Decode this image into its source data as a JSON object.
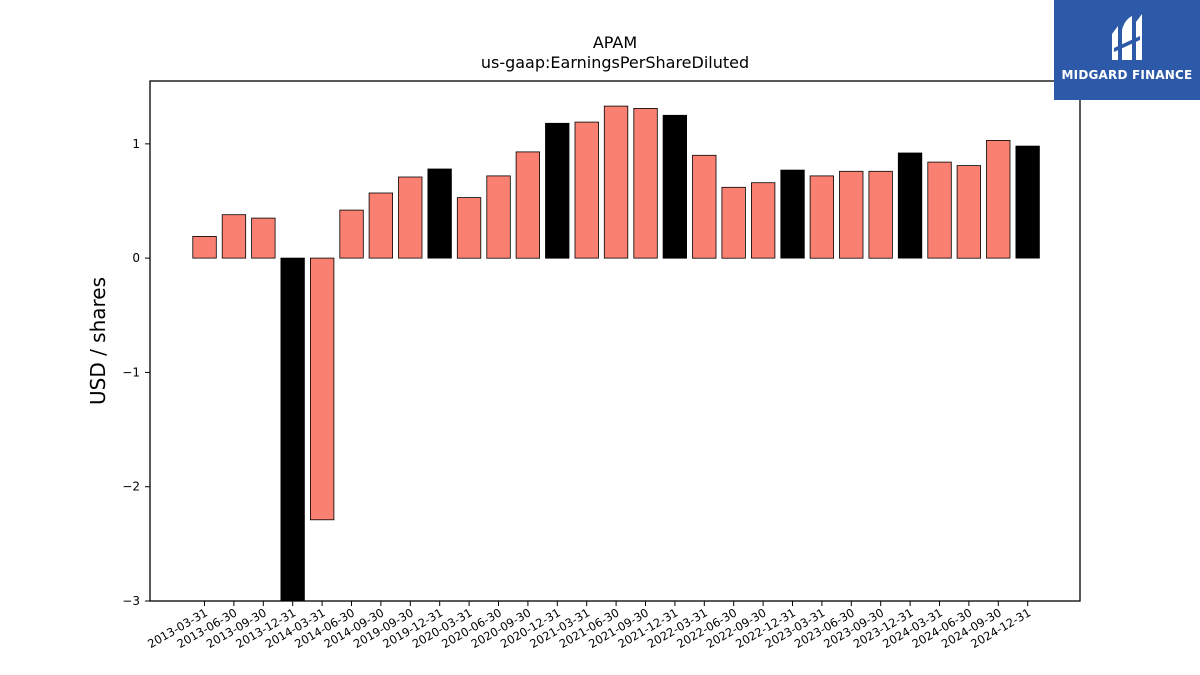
{
  "chart_data": {
    "type": "bar",
    "title": "APAM",
    "subtitle": "us-gaap:EarningsPerShareDiluted",
    "xlabel": "",
    "ylabel": "USD / shares",
    "ylim": [
      -3,
      1.55
    ],
    "yticks": [
      -3,
      -2,
      -1,
      0,
      1
    ],
    "ytick_labels": [
      "−3",
      "−2",
      "−1",
      "0",
      "1"
    ],
    "grid": false,
    "colors": {
      "quarterly": "#fa8072",
      "annual": "#000000"
    },
    "categories": [
      "2013-03-31",
      "2013-06-30",
      "2013-09-30",
      "2013-12-31",
      "2014-03-31",
      "2014-06-30",
      "2014-09-30",
      "2019-09-30",
      "2019-12-31",
      "2020-03-31",
      "2020-06-30",
      "2020-09-30",
      "2020-12-31",
      "2021-03-31",
      "2021-06-30",
      "2021-09-30",
      "2021-12-31",
      "2022-03-31",
      "2022-06-30",
      "2022-09-30",
      "2022-12-31",
      "2023-03-31",
      "2023-06-30",
      "2023-09-30",
      "2023-12-31",
      "2024-03-31",
      "2024-06-30",
      "2024-09-30",
      "2024-12-31"
    ],
    "values": [
      0.19,
      0.38,
      0.35,
      -3.0,
      -2.29,
      0.42,
      0.57,
      0.71,
      0.78,
      0.53,
      0.72,
      0.93,
      1.18,
      1.19,
      1.33,
      1.31,
      1.25,
      0.9,
      0.62,
      0.66,
      0.77,
      0.72,
      0.76,
      0.76,
      0.92,
      0.84,
      0.81,
      1.03,
      0.98
    ],
    "period": [
      "Q",
      "Q",
      "Q",
      "FY",
      "Q",
      "Q",
      "Q",
      "Q",
      "FY",
      "Q",
      "Q",
      "Q",
      "FY",
      "Q",
      "Q",
      "Q",
      "FY",
      "Q",
      "Q",
      "Q",
      "FY",
      "Q",
      "Q",
      "Q",
      "FY",
      "Q",
      "Q",
      "Q",
      "FY"
    ]
  },
  "logo": {
    "text": "MIDGARD FINANCE",
    "icon": "midgard-logo-icon"
  }
}
